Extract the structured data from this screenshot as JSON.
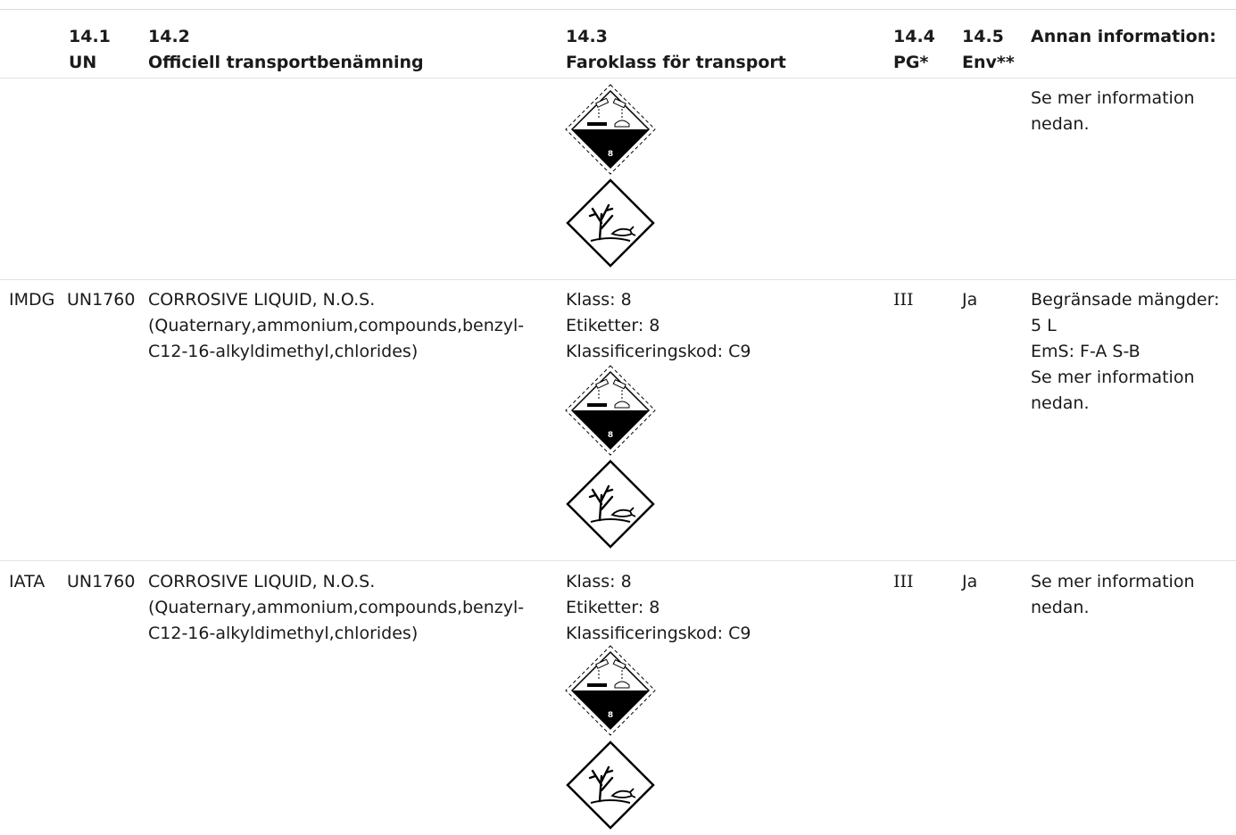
{
  "header": {
    "col_un": {
      "num": "14.1",
      "label": "UN"
    },
    "col_name": {
      "num": "14.2",
      "label": "Officiell transportbenämning"
    },
    "col_class": {
      "num": "14.3",
      "label": "Faroklass för transport"
    },
    "col_pg": {
      "num": "14.4",
      "label": "PG*"
    },
    "col_env": {
      "num": "14.5",
      "label": "Env**"
    },
    "col_other": {
      "label": "Annan information:"
    }
  },
  "rows": [
    {
      "mode": "",
      "un": "",
      "name": [],
      "class_lines": [],
      "pictograms": [
        "corrosive-pictogram",
        "environment-pictogram"
      ],
      "corrosive_number": "8",
      "pg": "",
      "env": "",
      "other": [
        "Se mer information",
        "nedan."
      ]
    },
    {
      "mode": "IMDG",
      "un": "UN1760",
      "name": [
        "CORROSIVE LIQUID, N.O.S.",
        "(Quaternary,ammonium,compounds,benzyl-",
        "C12-16-alkyldimethyl,chlorides)"
      ],
      "class_lines": [
        "Klass: 8",
        "Etiketter: 8",
        "Klassificeringskod: C9"
      ],
      "pictograms": [
        "corrosive-pictogram",
        "environment-pictogram"
      ],
      "corrosive_number": "8",
      "pg": "III",
      "env": "Ja",
      "other": [
        "Begränsade mängder:",
        "5 L",
        "EmS: F-A S-B",
        "Se mer information",
        "nedan."
      ]
    },
    {
      "mode": "IATA",
      "un": "UN1760",
      "name": [
        "CORROSIVE LIQUID, N.O.S.",
        "(Quaternary,ammonium,compounds,benzyl-",
        "C12-16-alkyldimethyl,chlorides)"
      ],
      "class_lines": [
        "Klass: 8",
        "Etiketter: 8",
        "Klassificeringskod: C9"
      ],
      "pictograms": [
        "corrosive-pictogram",
        "environment-pictogram"
      ],
      "corrosive_number": "8",
      "pg": "III",
      "env": "Ja",
      "other": [
        "Se mer information",
        "nedan."
      ]
    }
  ]
}
